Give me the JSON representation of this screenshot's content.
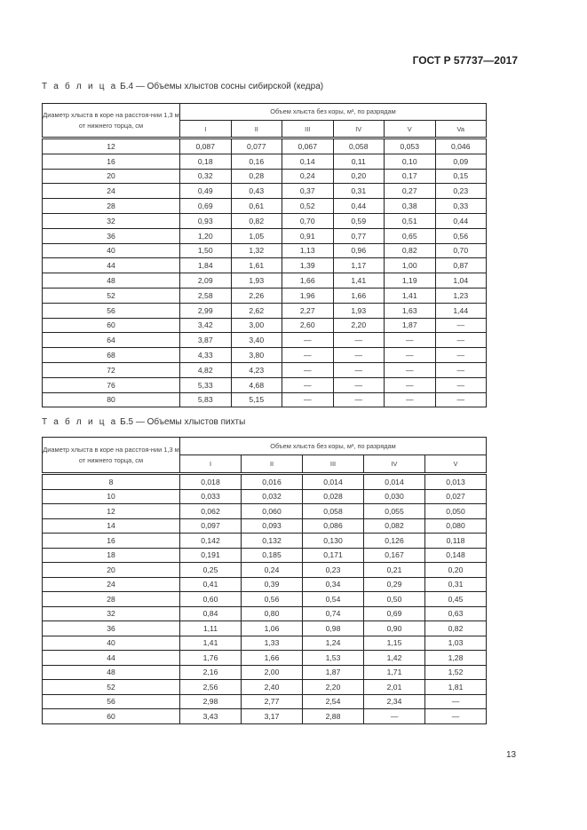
{
  "header": {
    "standard": "ГОСТ Р 57737—2017"
  },
  "table_b4": {
    "caption_prefix": "Т а б л и ц а",
    "caption": "Б.4 — Объемы хлыстов сосны сибирской (кедра)",
    "col_diameter": "Диаметр хлыста в коре на расстоя-нии 1,3 м от нижнего торца, см",
    "col_volume": "Объем хлыста без коры, м³, по разрядам",
    "grades": [
      "I",
      "II",
      "III",
      "IV",
      "V",
      "Va"
    ],
    "rows": [
      [
        "12",
        "0,087",
        "0,077",
        "0,067",
        "0,058",
        "0,053",
        "0,046"
      ],
      [
        "16",
        "0,18",
        "0,16",
        "0,14",
        "0,11",
        "0,10",
        "0,09"
      ],
      [
        "20",
        "0,32",
        "0,28",
        "0,24",
        "0,20",
        "0,17",
        "0,15"
      ],
      [
        "24",
        "0,49",
        "0,43",
        "0,37",
        "0,31",
        "0,27",
        "0,23"
      ],
      [
        "28",
        "0,69",
        "0,61",
        "0,52",
        "0,44",
        "0,38",
        "0,33"
      ],
      [
        "32",
        "0,93",
        "0,82",
        "0,70",
        "0,59",
        "0,51",
        "0,44"
      ],
      [
        "36",
        "1,20",
        "1,05",
        "0,91",
        "0,77",
        "0,65",
        "0,56"
      ],
      [
        "40",
        "1,50",
        "1,32",
        "1,13",
        "0,96",
        "0,82",
        "0,70"
      ],
      [
        "44",
        "1,84",
        "1,61",
        "1,39",
        "1,17",
        "1,00",
        "0,87"
      ],
      [
        "48",
        "2,09",
        "1,93",
        "1,66",
        "1,41",
        "1,19",
        "1,04"
      ],
      [
        "52",
        "2,58",
        "2,26",
        "1,96",
        "1,66",
        "1,41",
        "1,23"
      ],
      [
        "56",
        "2,99",
        "2,62",
        "2,27",
        "1,93",
        "1,63",
        "1,44"
      ],
      [
        "60",
        "3,42",
        "3,00",
        "2,60",
        "2,20",
        "1,87",
        "—"
      ],
      [
        "64",
        "3,87",
        "3,40",
        "—",
        "—",
        "—",
        "—"
      ],
      [
        "68",
        "4,33",
        "3,80",
        "—",
        "—",
        "—",
        "—"
      ],
      [
        "72",
        "4,82",
        "4,23",
        "—",
        "—",
        "—",
        "—"
      ],
      [
        "76",
        "5,33",
        "4,68",
        "—",
        "—",
        "—",
        "—"
      ],
      [
        "80",
        "5,83",
        "5,15",
        "—",
        "—",
        "—",
        "—"
      ]
    ]
  },
  "table_b5": {
    "caption_prefix": "Т а б л и ц а",
    "caption": "Б.5 — Объемы хлыстов пихты",
    "col_diameter": "Диаметр хлыста в коре на расстоя-нии 1,3 м от нижнего торца, см",
    "col_volume": "Объем хлыста без коры, м³, по разрядам",
    "grades": [
      "I",
      "II",
      "III",
      "IV",
      "V"
    ],
    "rows": [
      [
        "8",
        "0,018",
        "0,016",
        "0,014",
        "0,014",
        "0,013"
      ],
      [
        "10",
        "0,033",
        "0,032",
        "0,028",
        "0,030",
        "0,027"
      ],
      [
        "12",
        "0,062",
        "0,060",
        "0,058",
        "0,055",
        "0,050"
      ],
      [
        "14",
        "0,097",
        "0,093",
        "0,086",
        "0,082",
        "0,080"
      ],
      [
        "16",
        "0,142",
        "0,132",
        "0,130",
        "0,126",
        "0,118"
      ],
      [
        "18",
        "0,191",
        "0,185",
        "0,171",
        "0,167",
        "0,148"
      ],
      [
        "20",
        "0,25",
        "0,24",
        "0,23",
        "0,21",
        "0,20"
      ],
      [
        "24",
        "0,41",
        "0,39",
        "0,34",
        "0,29",
        "0,31"
      ],
      [
        "28",
        "0,60",
        "0,56",
        "0,54",
        "0,50",
        "0,45"
      ],
      [
        "32",
        "0,84",
        "0,80",
        "0,74",
        "0,69",
        "0,63"
      ],
      [
        "36",
        "1,11",
        "1,06",
        "0,98",
        "0,90",
        "0,82"
      ],
      [
        "40",
        "1,41",
        "1,33",
        "1,24",
        "1,15",
        "1,03"
      ],
      [
        "44",
        "1,76",
        "1,66",
        "1,53",
        "1,42",
        "1,28"
      ],
      [
        "48",
        "2,16",
        "2,00",
        "1,87",
        "1,71",
        "1,52"
      ],
      [
        "52",
        "2,56",
        "2,40",
        "2,20",
        "2,01",
        "1,81"
      ],
      [
        "56",
        "2,98",
        "2,77",
        "2,54",
        "2,34",
        "—"
      ],
      [
        "60",
        "3,43",
        "3,17",
        "2,88",
        "—",
        "—"
      ]
    ]
  },
  "footer": {
    "page_number": "13"
  }
}
